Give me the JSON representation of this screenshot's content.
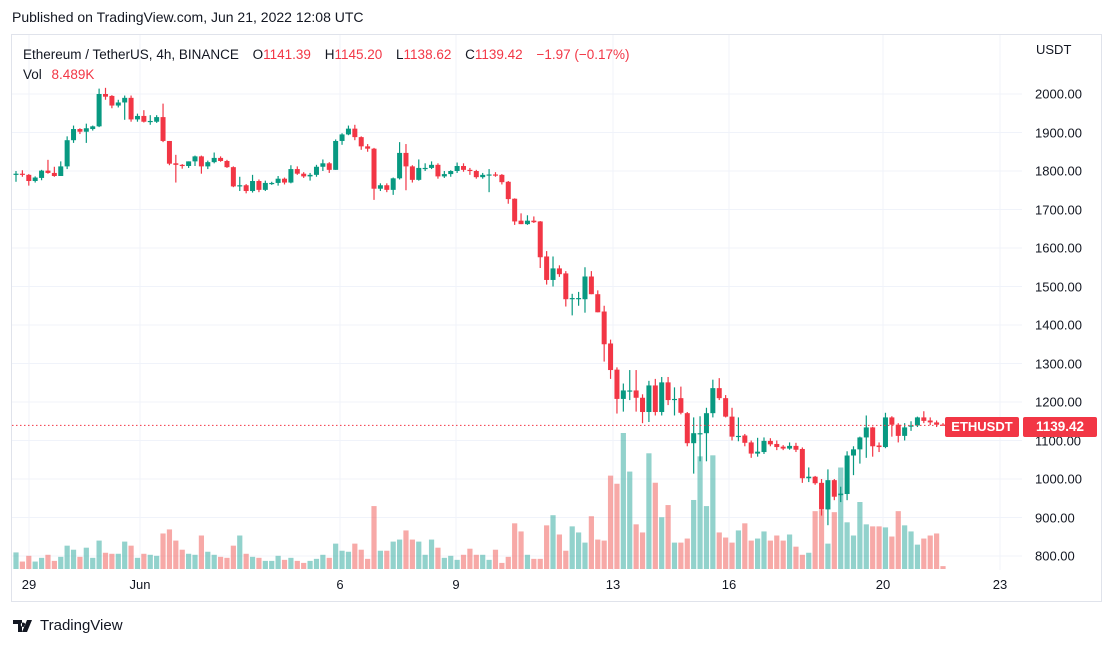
{
  "published": "Published on TradingView.com, Jun 21, 2022 12:08 UTC",
  "legend": {
    "symbol": "Ethereum / TetherUS, 4h, BINANCE",
    "o_label": "O",
    "o": "1141.39",
    "h_label": "H",
    "h": "1145.20",
    "l_label": "L",
    "l": "1138.62",
    "c_label": "C",
    "c": "1139.42",
    "change": "−1.97 (−0.17%)",
    "vol_label": "Vol",
    "vol": "8.489K"
  },
  "currency": "USDT",
  "last_price_label": {
    "symbol": "ETHUSDT",
    "price": "1139.42"
  },
  "logo_text": "TradingView",
  "colors": {
    "up": "#089981",
    "down": "#f23645",
    "vol_up": "#26a69a",
    "vol_down": "#ef5350",
    "grid": "#f0f3fa"
  },
  "chart_data": {
    "type": "candlestick",
    "interval": "4h",
    "ylim": [
      760,
      2060
    ],
    "y_ticks": [
      "2000.00",
      "1900.00",
      "1800.00",
      "1700.00",
      "1600.00",
      "1500.00",
      "1400.00",
      "1300.00",
      "1200.00",
      "1100.00",
      "1000.00",
      "900.00",
      "800.00"
    ],
    "x_ticks": [
      "29",
      "Jun",
      "6",
      "9",
      "13",
      "16",
      "20",
      "23"
    ],
    "grid": true,
    "last_price": 1139.42,
    "candles_ohlc": [
      [
        1793,
        1800,
        1772,
        1793
      ],
      [
        1793,
        1802,
        1785,
        1790
      ],
      [
        1790,
        1792,
        1762,
        1774
      ],
      [
        1774,
        1786,
        1770,
        1783
      ],
      [
        1782,
        1803,
        1776,
        1801
      ],
      [
        1801,
        1829,
        1793,
        1795
      ],
      [
        1795,
        1811,
        1785,
        1787
      ],
      [
        1787,
        1825,
        1787,
        1812
      ],
      [
        1812,
        1890,
        1805,
        1880
      ],
      [
        1880,
        1918,
        1873,
        1909
      ],
      [
        1909,
        1911,
        1896,
        1902
      ],
      [
        1902,
        1923,
        1873,
        1911
      ],
      [
        1909,
        1918,
        1905,
        1916
      ],
      [
        1916,
        2014,
        1914,
        2000
      ],
      [
        2000,
        2016,
        1985,
        1993
      ],
      [
        1995,
        1997,
        1963,
        1970
      ],
      [
        1970,
        1985,
        1965,
        1978
      ],
      [
        1978,
        1996,
        1933,
        1990
      ],
      [
        1990,
        1996,
        1928,
        1934
      ],
      [
        1934,
        1949,
        1928,
        1943
      ],
      [
        1943,
        1958,
        1926,
        1928
      ],
      [
        1928,
        1945,
        1920,
        1930
      ],
      [
        1928,
        1945,
        1925,
        1940
      ],
      [
        1940,
        1975,
        1875,
        1878
      ],
      [
        1878,
        1878,
        1815,
        1819
      ],
      [
        1820,
        1842,
        1770,
        1816
      ],
      [
        1816,
        1818,
        1806,
        1813
      ],
      [
        1813,
        1825,
        1808,
        1825
      ],
      [
        1825,
        1840,
        1813,
        1838
      ],
      [
        1838,
        1840,
        1793,
        1812
      ],
      [
        1812,
        1827,
        1805,
        1823
      ],
      [
        1823,
        1848,
        1820,
        1834
      ],
      [
        1834,
        1838,
        1824,
        1826
      ],
      [
        1826,
        1829,
        1808,
        1810
      ],
      [
        1810,
        1812,
        1758,
        1760
      ],
      [
        1762,
        1785,
        1748,
        1763
      ],
      [
        1763,
        1766,
        1742,
        1748
      ],
      [
        1748,
        1790,
        1744,
        1774
      ],
      [
        1774,
        1778,
        1745,
        1751
      ],
      [
        1751,
        1775,
        1748,
        1769
      ],
      [
        1769,
        1772,
        1764,
        1769
      ],
      [
        1769,
        1787,
        1762,
        1780
      ],
      [
        1780,
        1783,
        1765,
        1770
      ],
      [
        1770,
        1815,
        1768,
        1805
      ],
      [
        1805,
        1812,
        1790,
        1793
      ],
      [
        1793,
        1797,
        1782,
        1786
      ],
      [
        1786,
        1795,
        1775,
        1790
      ],
      [
        1790,
        1816,
        1785,
        1811
      ],
      [
        1811,
        1830,
        1800,
        1820
      ],
      [
        1820,
        1823,
        1795,
        1803
      ],
      [
        1803,
        1882,
        1803,
        1878
      ],
      [
        1878,
        1898,
        1868,
        1895
      ],
      [
        1895,
        1918,
        1893,
        1910
      ],
      [
        1910,
        1920,
        1880,
        1888
      ],
      [
        1888,
        1890,
        1855,
        1864
      ],
      [
        1864,
        1870,
        1850,
        1858
      ],
      [
        1858,
        1860,
        1725,
        1754
      ],
      [
        1754,
        1768,
        1748,
        1763
      ],
      [
        1763,
        1768,
        1745,
        1751
      ],
      [
        1751,
        1783,
        1738,
        1781
      ],
      [
        1781,
        1875,
        1778,
        1847
      ],
      [
        1847,
        1870,
        1750,
        1812
      ],
      [
        1812,
        1815,
        1770,
        1777
      ],
      [
        1777,
        1830,
        1775,
        1808
      ],
      [
        1808,
        1820,
        1800,
        1808
      ],
      [
        1808,
        1825,
        1805,
        1816
      ],
      [
        1816,
        1820,
        1780,
        1786
      ],
      [
        1786,
        1800,
        1782,
        1792
      ],
      [
        1792,
        1802,
        1785,
        1800
      ],
      [
        1800,
        1822,
        1795,
        1813
      ],
      [
        1813,
        1820,
        1798,
        1803
      ],
      [
        1803,
        1808,
        1790,
        1800
      ],
      [
        1800,
        1803,
        1780,
        1784
      ],
      [
        1784,
        1795,
        1780,
        1790
      ],
      [
        1790,
        1805,
        1745,
        1791
      ],
      [
        1791,
        1797,
        1785,
        1788
      ],
      [
        1790,
        1792,
        1765,
        1771
      ],
      [
        1772,
        1774,
        1715,
        1727
      ],
      [
        1728,
        1729,
        1660,
        1669
      ],
      [
        1671,
        1690,
        1662,
        1662
      ],
      [
        1662,
        1685,
        1660,
        1671
      ],
      [
        1671,
        1682,
        1665,
        1667
      ],
      [
        1669,
        1670,
        1548,
        1576
      ],
      [
        1578,
        1592,
        1505,
        1517
      ],
      [
        1517,
        1578,
        1500,
        1547
      ],
      [
        1547,
        1555,
        1525,
        1532
      ],
      [
        1534,
        1540,
        1448,
        1467
      ],
      [
        1467,
        1481,
        1425,
        1470
      ],
      [
        1470,
        1486,
        1450,
        1470
      ],
      [
        1467,
        1550,
        1432,
        1526
      ],
      [
        1526,
        1540,
        1480,
        1480
      ],
      [
        1480,
        1490,
        1433,
        1433
      ],
      [
        1435,
        1450,
        1305,
        1350
      ],
      [
        1352,
        1362,
        1260,
        1283
      ],
      [
        1284,
        1290,
        1170,
        1208
      ],
      [
        1208,
        1248,
        1175,
        1230
      ],
      [
        1230,
        1283,
        1205,
        1230
      ],
      [
        1230,
        1283,
        1175,
        1211
      ],
      [
        1211,
        1220,
        1145,
        1174
      ],
      [
        1174,
        1255,
        1148,
        1243
      ],
      [
        1243,
        1260,
        1165,
        1174
      ],
      [
        1174,
        1265,
        1165,
        1251
      ],
      [
        1251,
        1265,
        1192,
        1205
      ],
      [
        1208,
        1238,
        1165,
        1208
      ],
      [
        1210,
        1240,
        1168,
        1172
      ],
      [
        1171,
        1174,
        1085,
        1093
      ],
      [
        1093,
        1160,
        1014,
        1119
      ],
      [
        1119,
        1163,
        1046,
        1119
      ],
      [
        1119,
        1185,
        1046,
        1171
      ],
      [
        1171,
        1258,
        1160,
        1236
      ],
      [
        1236,
        1262,
        1205,
        1210
      ],
      [
        1210,
        1218,
        1160,
        1162
      ],
      [
        1162,
        1185,
        1100,
        1110
      ],
      [
        1112,
        1160,
        1098,
        1112
      ],
      [
        1113,
        1117,
        1085,
        1094
      ],
      [
        1095,
        1100,
        1055,
        1066
      ],
      [
        1066,
        1107,
        1058,
        1071
      ],
      [
        1070,
        1108,
        1065,
        1099
      ],
      [
        1099,
        1106,
        1085,
        1090
      ],
      [
        1091,
        1100,
        1075,
        1083
      ],
      [
        1084,
        1088,
        1075,
        1079
      ],
      [
        1079,
        1095,
        1076,
        1086
      ],
      [
        1086,
        1094,
        1070,
        1076
      ],
      [
        1078,
        1082,
        990,
        1002
      ],
      [
        1002,
        1030,
        992,
        1006
      ],
      [
        1006,
        1008,
        985,
        989
      ],
      [
        990,
        1000,
        905,
        921
      ],
      [
        921,
        1025,
        880,
        997
      ],
      [
        997,
        1000,
        945,
        954
      ],
      [
        958,
        980,
        940,
        962
      ],
      [
        961,
        1072,
        945,
        1061
      ],
      [
        1061,
        1085,
        1010,
        1077
      ],
      [
        1077,
        1110,
        1040,
        1108
      ],
      [
        1108,
        1165,
        1055,
        1134
      ],
      [
        1134,
        1136,
        1058,
        1085
      ],
      [
        1087,
        1095,
        1070,
        1083
      ],
      [
        1083,
        1172,
        1080,
        1160
      ],
      [
        1160,
        1163,
        1110,
        1141
      ],
      [
        1141,
        1145,
        1095,
        1112
      ],
      [
        1112,
        1145,
        1100,
        1134
      ],
      [
        1136,
        1150,
        1125,
        1139
      ],
      [
        1139,
        1162,
        1135,
        1160
      ],
      [
        1160,
        1176,
        1145,
        1151
      ],
      [
        1152,
        1160,
        1140,
        1147
      ],
      [
        1147,
        1152,
        1135,
        1141
      ],
      [
        1141.39,
        1145.2,
        1138.62,
        1139.42
      ]
    ],
    "volume_k": [
      49,
      22,
      39,
      22,
      33,
      42,
      24,
      36,
      69,
      57,
      36,
      63,
      33,
      84,
      48,
      45,
      45,
      81,
      69,
      33,
      45,
      42,
      39,
      105,
      117,
      84,
      57,
      45,
      42,
      99,
      51,
      42,
      36,
      33,
      69,
      99,
      45,
      36,
      33,
      24,
      24,
      39,
      27,
      33,
      24,
      18,
      24,
      30,
      42,
      33,
      75,
      54,
      51,
      75,
      57,
      30,
      186,
      54,
      54,
      81,
      87,
      114,
      87,
      81,
      42,
      87,
      63,
      33,
      39,
      27,
      42,
      60,
      42,
      42,
      27,
      57,
      18,
      36,
      135,
      111,
      42,
      30,
      30,
      129,
      159,
      102,
      54,
      126,
      108,
      78,
      156,
      87,
      84,
      276,
      252,
      402,
      288,
      132,
      108,
      342,
      255,
      153,
      189,
      78,
      78,
      90,
      204,
      333,
      186,
      336,
      108,
      93,
      78,
      114,
      135,
      84,
      90,
      111,
      84,
      99,
      84,
      102,
      66,
      42,
      48,
      171,
      174,
      75,
      168,
      300,
      138,
      99,
      198,
      132,
      126,
      126,
      123,
      96,
      171,
      129,
      111,
      72,
      90,
      99,
      105,
      8.489
    ]
  }
}
